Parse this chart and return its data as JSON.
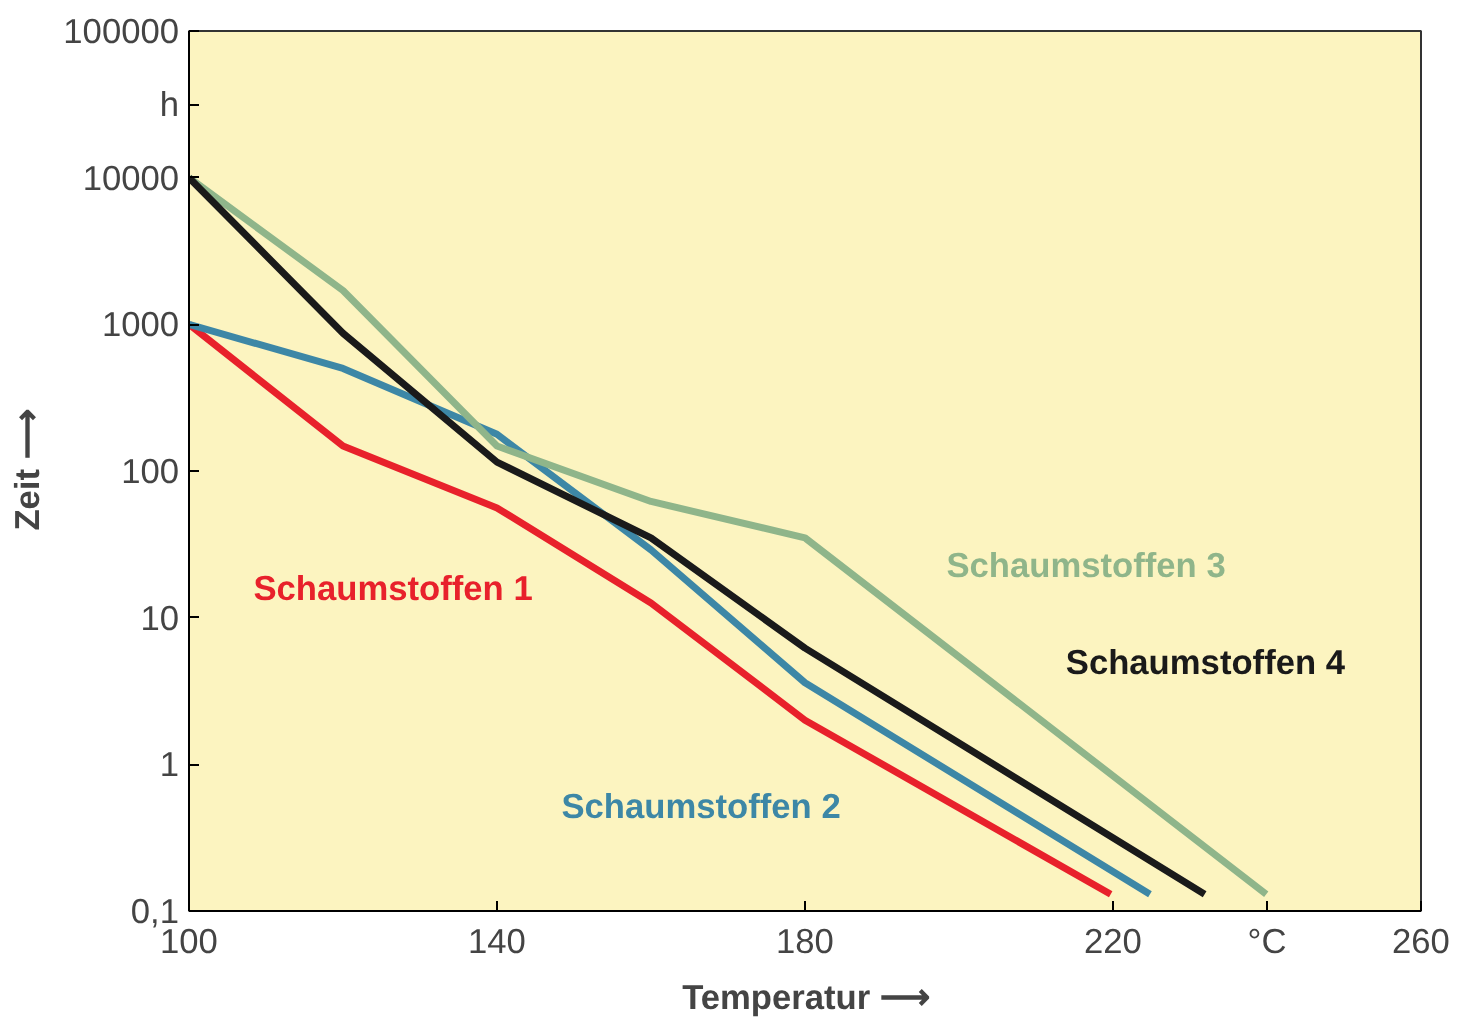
{
  "chart_data": {
    "type": "line",
    "xlabel": "Temperatur ⟶",
    "ylabel": "Zeit ⟶",
    "log": "y",
    "xlim": [
      100,
      260
    ],
    "xticks": [
      100,
      140,
      180,
      220,
      {
        "value": 240,
        "label": "°C"
      },
      260
    ],
    "ylim": [
      0.1,
      100000
    ],
    "yticks": [
      {
        "value": 0.1,
        "label": "0,1"
      },
      1,
      10,
      100,
      1000,
      10000,
      {
        "value": 31623,
        "label": "h"
      },
      100000
    ],
    "grid": false,
    "marker": "none",
    "line_style": "solid",
    "series": [
      {
        "name": "Schaumstoffen 1",
        "color": "#e8212b",
        "x": [
          100,
          120,
          140,
          160,
          180,
          219.7
        ],
        "values": [
          1000,
          148,
          56,
          12.6,
          2.0,
          0.13
        ]
      },
      {
        "name": "Schaumstoffen 2",
        "color": "#3d87a6",
        "x": [
          100,
          120,
          140,
          160,
          180,
          224.8
        ],
        "values": [
          1000,
          500,
          178,
          29,
          3.6,
          0.13
        ]
      },
      {
        "name": "Schaumstoffen 3",
        "color": "#8fb58a",
        "x": [
          100,
          120,
          140,
          160,
          180,
          239.9
        ],
        "values": [
          10000,
          1700,
          148,
          62,
          35,
          0.13
        ]
      },
      {
        "name": "Schaumstoffen 4",
        "color": "#1a1a1a",
        "x": [
          100,
          120,
          140,
          160,
          180,
          231.9
        ],
        "values": [
          10000,
          870,
          115,
          35,
          6.2,
          0.13
        ]
      }
    ]
  }
}
